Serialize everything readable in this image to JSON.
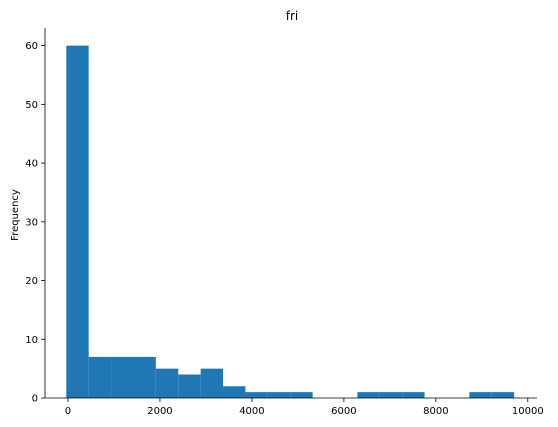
{
  "chart_data": {
    "type": "bar",
    "title": "fri",
    "xlabel": "",
    "ylabel": "Frequency",
    "xlim": [
      -500,
      10200
    ],
    "ylim": [
      0,
      63
    ],
    "grid": false,
    "x_ticks": [
      0,
      2000,
      4000,
      6000,
      8000,
      10000
    ],
    "y_ticks": [
      0,
      10,
      20,
      30,
      40,
      50,
      60
    ],
    "bin_edges": [
      -37,
      450,
      937,
      1424,
      1911,
      2398,
      2885,
      3372,
      3859,
      4346,
      4833,
      5320,
      5807,
      6294,
      6781,
      7268,
      7755,
      8242,
      8729,
      9216,
      9703
    ],
    "values": [
      60,
      7,
      7,
      7,
      5,
      4,
      5,
      2,
      1,
      1,
      1,
      0,
      0,
      1,
      1,
      1,
      0,
      0,
      1,
      1
    ],
    "bar_color": "#1f77b4"
  }
}
